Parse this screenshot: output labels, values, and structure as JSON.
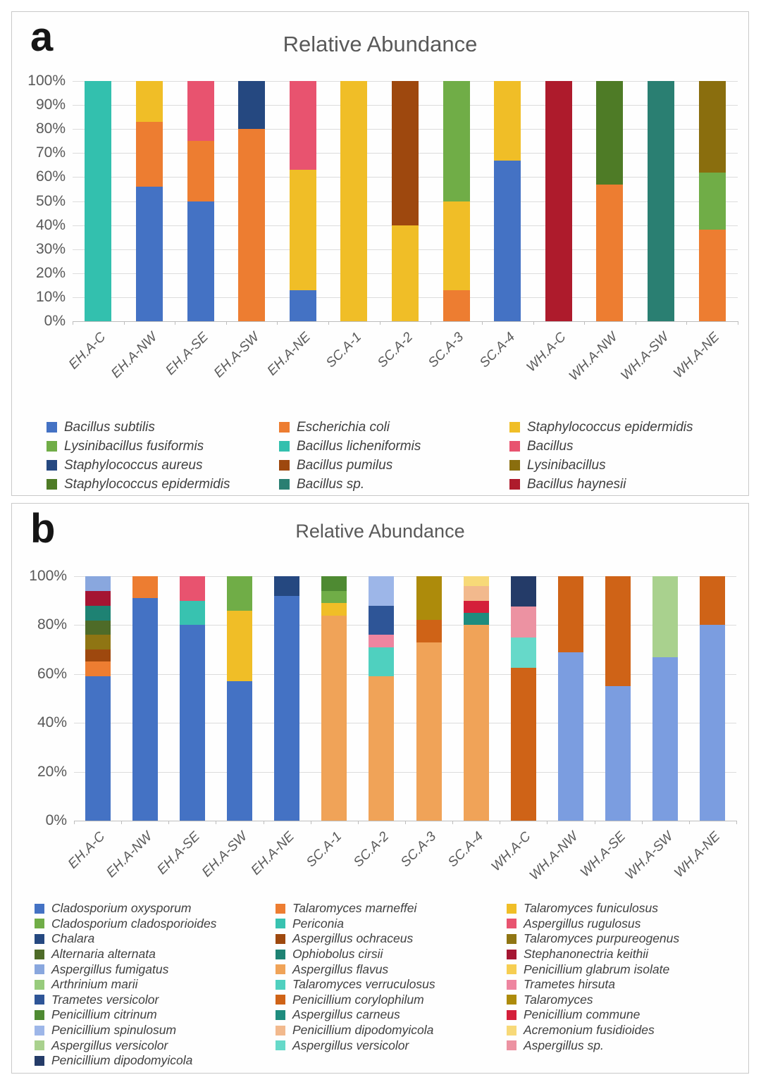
{
  "chart_data": [
    {
      "id": "a",
      "panel_label": "a",
      "type": "bar",
      "stacked": true,
      "title": "Relative Abundance",
      "ylabel": "",
      "xlabel": "",
      "ylim": [
        0,
        100
      ],
      "grid": true,
      "legend_position": "bottom",
      "y_ticks": [
        "100%",
        "90%",
        "80%",
        "70%",
        "60%",
        "50%",
        "40%",
        "30%",
        "20%",
        "10%",
        "0%"
      ],
      "categories": [
        "EH.A-C",
        "EH.A-NW",
        "EH.A-SE",
        "EH.A-SW",
        "EH.A-NE",
        "SC.A-1",
        "SC.A-2",
        "SC.A-3",
        "SC.A-4",
        "WH.A-C",
        "WH.A-NW",
        "WH.A-SW",
        "WH.A-NE"
      ],
      "bars": [
        {
          "category": "EH.A-C",
          "segments": [
            {
              "name": "Bacillus licheniformis",
              "value": 100,
              "color": "#33C0AE"
            }
          ]
        },
        {
          "category": "EH.A-NW",
          "segments": [
            {
              "name": "Bacillus subtilis",
              "value": 56,
              "color": "#4472C4"
            },
            {
              "name": "Escherichia coli",
              "value": 27,
              "color": "#ED7D31"
            },
            {
              "name": "Staphylococcus epidermidis",
              "value": 17,
              "color": "#F0BE27"
            }
          ]
        },
        {
          "category": "EH.A-SE",
          "segments": [
            {
              "name": "Bacillus subtilis",
              "value": 50,
              "color": "#4472C4"
            },
            {
              "name": "Escherichia coli",
              "value": 25,
              "color": "#ED7D31"
            },
            {
              "name": "Bacillus",
              "value": 25,
              "color": "#E8536F"
            }
          ]
        },
        {
          "category": "EH.A-SW",
          "segments": [
            {
              "name": "Escherichia coli",
              "value": 80,
              "color": "#ED7D31"
            },
            {
              "name": "Staphylococcus aureus",
              "value": 20,
              "color": "#254880"
            }
          ]
        },
        {
          "category": "EH.A-NE",
          "segments": [
            {
              "name": "Bacillus subtilis",
              "value": 13,
              "color": "#4472C4"
            },
            {
              "name": "Staphylococcus epidermidis",
              "value": 50,
              "color": "#F0BE27"
            },
            {
              "name": "Bacillus",
              "value": 37,
              "color": "#E8536F"
            }
          ]
        },
        {
          "category": "SC.A-1",
          "segments": [
            {
              "name": "Staphylococcus epidermidis",
              "value": 100,
              "color": "#F0BE27"
            }
          ]
        },
        {
          "category": "SC.A-2",
          "segments": [
            {
              "name": "Staphylococcus epidermidis",
              "value": 40,
              "color": "#F0BE27"
            },
            {
              "name": "Bacillus pumilus",
              "value": 60,
              "color": "#9E480E"
            }
          ]
        },
        {
          "category": "SC.A-3",
          "segments": [
            {
              "name": "Escherichia coli",
              "value": 13,
              "color": "#ED7D31"
            },
            {
              "name": "Staphylococcus epidermidis",
              "value": 37,
              "color": "#F0BE27"
            },
            {
              "name": "Lysinibacillus fusiformis",
              "value": 50,
              "color": "#70AD47"
            }
          ]
        },
        {
          "category": "SC.A-4",
          "segments": [
            {
              "name": "Bacillus subtilis",
              "value": 67,
              "color": "#4472C4"
            },
            {
              "name": "Staphylococcus epidermidis",
              "value": 33,
              "color": "#F0BE27"
            }
          ]
        },
        {
          "category": "WH.A-C",
          "segments": [
            {
              "name": "Bacillus haynesii",
              "value": 100,
              "color": "#AE1B2C"
            }
          ]
        },
        {
          "category": "WH.A-NW",
          "segments": [
            {
              "name": "Escherichia coli",
              "value": 57,
              "color": "#ED7D31"
            },
            {
              "name": "Staphylococcus epidermidis",
              "value": 43,
              "color": "#4E7B26"
            }
          ]
        },
        {
          "category": "WH.A-SW",
          "segments": [
            {
              "name": "Bacillus sp.",
              "value": 100,
              "color": "#2A7F72"
            }
          ]
        },
        {
          "category": "WH.A-NE",
          "segments": [
            {
              "name": "Escherichia coli",
              "value": 38,
              "color": "#ED7D31"
            },
            {
              "name": "Lysinibacillus fusiformis",
              "value": 24,
              "color": "#70AD47"
            },
            {
              "name": "Lysinibacillus",
              "value": 38,
              "color": "#8A6E0E"
            }
          ]
        }
      ],
      "legend": [
        {
          "label": "Bacillus subtilis",
          "color": "#4472C4"
        },
        {
          "label": "Escherichia coli",
          "color": "#ED7D31"
        },
        {
          "label": "Staphylococcus epidermidis",
          "color": "#F0BE27"
        },
        {
          "label": "Lysinibacillus fusiformis",
          "color": "#70AD47"
        },
        {
          "label": "Bacillus licheniformis",
          "color": "#33C0AE"
        },
        {
          "label": "Bacillus",
          "color": "#E8536F"
        },
        {
          "label": "Staphylococcus aureus",
          "color": "#254880"
        },
        {
          "label": "Bacillus pumilus",
          "color": "#9E480E"
        },
        {
          "label": "Lysinibacillus",
          "color": "#8A6E0E"
        },
        {
          "label": "Staphylococcus epidermidis",
          "color": "#4E7B26"
        },
        {
          "label": "Bacillus sp.",
          "color": "#2A7F72"
        },
        {
          "label": "Bacillus haynesii",
          "color": "#AE1B2C"
        }
      ]
    },
    {
      "id": "b",
      "panel_label": "b",
      "type": "bar",
      "stacked": true,
      "title": "Relative Abundance",
      "ylabel": "",
      "xlabel": "",
      "ylim": [
        0,
        100
      ],
      "grid": true,
      "legend_position": "bottom",
      "y_ticks": [
        "100%",
        "80%",
        "60%",
        "40%",
        "20%",
        "0%"
      ],
      "categories": [
        "EH.A-C",
        "EH.A-NW",
        "EH.A-SE",
        "EH.A-SW",
        "EH.A-NE",
        "SC.A-1",
        "SC.A-2",
        "SC.A-3",
        "SC.A-4",
        "WH.A-C",
        "WH.A-NW",
        "WH.A-SE",
        "WH.A-SW",
        "WH.A-NE"
      ],
      "bars": [
        {
          "category": "EH.A-C",
          "segments": [
            {
              "name": "Cladosporium oxysporum",
              "value": 59,
              "color": "#4472C4"
            },
            {
              "name": "Talaromyces marneffei",
              "value": 6,
              "color": "#ED7D31"
            },
            {
              "name": "Aspergillus ochraceus",
              "value": 5,
              "color": "#9E480E"
            },
            {
              "name": "Talaromyces purpureogenus",
              "value": 6,
              "color": "#8F7513"
            },
            {
              "name": "Alternaria alternata",
              "value": 6,
              "color": "#4E6B28"
            },
            {
              "name": "Ophiobolus cirsii",
              "value": 6,
              "color": "#1E8273"
            },
            {
              "name": "Stephanonectria keithii",
              "value": 6,
              "color": "#A51532"
            },
            {
              "name": "Aspergillus fumigatus",
              "value": 6,
              "color": "#89A7DE"
            }
          ]
        },
        {
          "category": "EH.A-NW",
          "segments": [
            {
              "name": "Cladosporium oxysporum",
              "value": 91,
              "color": "#4472C4"
            },
            {
              "name": "Talaromyces marneffei",
              "value": 9,
              "color": "#ED7D31"
            }
          ]
        },
        {
          "category": "EH.A-SE",
          "segments": [
            {
              "name": "Cladosporium oxysporum",
              "value": 80,
              "color": "#4472C4"
            },
            {
              "name": "Periconia",
              "value": 10,
              "color": "#38C2B0"
            },
            {
              "name": "Aspergillus rugulosus",
              "value": 10,
              "color": "#E8536F"
            }
          ]
        },
        {
          "category": "EH.A-SW",
          "segments": [
            {
              "name": "Cladosporium oxysporum",
              "value": 57,
              "color": "#4472C4"
            },
            {
              "name": "Talaromyces funiculosus",
              "value": 29,
              "color": "#F0BE27"
            },
            {
              "name": "Cladosporium cladosporioides",
              "value": 14,
              "color": "#70AD47"
            }
          ]
        },
        {
          "category": "EH.A-NE",
          "segments": [
            {
              "name": "Cladosporium oxysporum",
              "value": 92,
              "color": "#4472C4"
            },
            {
              "name": "Chalara",
              "value": 8,
              "color": "#254880"
            }
          ]
        },
        {
          "category": "SC.A-1",
          "segments": [
            {
              "name": "Aspergillus flavus",
              "value": 84,
              "color": "#F0A358"
            },
            {
              "name": "Talaromyces funiculosus",
              "value": 5,
              "color": "#F0BE27"
            },
            {
              "name": "Cladosporium cladosporioides",
              "value": 5,
              "color": "#70AD47"
            },
            {
              "name": "Penicillium citrinum",
              "value": 6,
              "color": "#4E8A32"
            }
          ]
        },
        {
          "category": "SC.A-2",
          "segments": [
            {
              "name": "Aspergillus flavus",
              "value": 59,
              "color": "#F0A358"
            },
            {
              "name": "Talaromyces verruculosus",
              "value": 12,
              "color": "#4FD0BF"
            },
            {
              "name": "Trametes hirsuta",
              "value": 5,
              "color": "#EE85A0"
            },
            {
              "name": "Trametes versicolor",
              "value": 12,
              "color": "#2E5597"
            },
            {
              "name": "Penicillium spinulosum",
              "value": 12,
              "color": "#9DB6E8"
            }
          ]
        },
        {
          "category": "SC.A-3",
          "segments": [
            {
              "name": "Aspergillus flavus",
              "value": 73,
              "color": "#F0A358"
            },
            {
              "name": "Penicillium corylophilum",
              "value": 9,
              "color": "#CF6317"
            },
            {
              "name": "Talaromyces",
              "value": 18,
              "color": "#AD8B0B"
            }
          ]
        },
        {
          "category": "SC.A-4",
          "segments": [
            {
              "name": "Aspergillus flavus",
              "value": 80,
              "color": "#F0A358"
            },
            {
              "name": "Aspergillus carneus",
              "value": 5,
              "color": "#1E8C7E"
            },
            {
              "name": "Penicillium commune",
              "value": 5,
              "color": "#D41F3A"
            },
            {
              "name": "Penicillium dipodomyicola",
              "value": 6,
              "color": "#F2B98D"
            },
            {
              "name": "Acremonium fusidioides",
              "value": 4,
              "color": "#F7D978"
            }
          ]
        },
        {
          "category": "WH.A-C",
          "segments": [
            {
              "name": "Penicillium corylophilum",
              "value": 62.5,
              "color": "#CF6317"
            },
            {
              "name": "Aspergillus versicolor",
              "value": 12.5,
              "color": "#66D9C9"
            },
            {
              "name": "Aspergillus sp.",
              "value": 12.5,
              "color": "#EC92A2"
            },
            {
              "name": "Penicillium dipodomyicola",
              "value": 12.5,
              "color": "#243B68"
            }
          ]
        },
        {
          "category": "WH.A-NW",
          "segments": [
            {
              "name": "Aspergillus fumigatus",
              "value": 69,
              "color": "#7B9DE0"
            },
            {
              "name": "Penicillium corylophilum",
              "value": 31,
              "color": "#CF6317"
            }
          ]
        },
        {
          "category": "WH.A-SE",
          "segments": [
            {
              "name": "Aspergillus fumigatus",
              "value": 55,
              "color": "#7B9DE0"
            },
            {
              "name": "Penicillium corylophilum",
              "value": 45,
              "color": "#CF6317"
            }
          ]
        },
        {
          "category": "WH.A-SW",
          "segments": [
            {
              "name": "Aspergillus fumigatus",
              "value": 67,
              "color": "#7B9DE0"
            },
            {
              "name": "Aspergillus versicolor",
              "value": 33,
              "color": "#A9D18E"
            }
          ]
        },
        {
          "category": "WH.A-NE",
          "segments": [
            {
              "name": "Aspergillus fumigatus",
              "value": 80,
              "color": "#7B9DE0"
            },
            {
              "name": "Penicillium corylophilum",
              "value": 20,
              "color": "#CF6317"
            }
          ]
        }
      ],
      "legend": [
        {
          "label": "Cladosporium oxysporum",
          "color": "#4472C4"
        },
        {
          "label": "Talaromyces marneffei",
          "color": "#ED7D31"
        },
        {
          "label": "Talaromyces funiculosus",
          "color": "#F0BE27"
        },
        {
          "label": "Cladosporium cladosporioides",
          "color": "#70AD47"
        },
        {
          "label": "Periconia",
          "color": "#38C2B0"
        },
        {
          "label": "Aspergillus rugulosus",
          "color": "#E8536F"
        },
        {
          "label": "Chalara",
          "color": "#254880"
        },
        {
          "label": "Aspergillus ochraceus",
          "color": "#9E480E"
        },
        {
          "label": "Talaromyces purpureogenus",
          "color": "#8F7513"
        },
        {
          "label": "Alternaria alternata",
          "color": "#4E6B28"
        },
        {
          "label": "Ophiobolus cirsii",
          "color": "#1E8273"
        },
        {
          "label": "Stephanonectria keithii",
          "color": "#A51532"
        },
        {
          "label": "Aspergillus fumigatus",
          "color": "#89A7DE"
        },
        {
          "label": "Aspergillus flavus",
          "color": "#F0A358"
        },
        {
          "label": "Penicillium glabrum isolate",
          "color": "#F6CE52"
        },
        {
          "label": "Arthrinium marii",
          "color": "#97CB7C"
        },
        {
          "label": "Talaromyces verruculosus",
          "color": "#4FD0BF"
        },
        {
          "label": "Trametes hirsuta",
          "color": "#EE85A0"
        },
        {
          "label": "Trametes versicolor",
          "color": "#2E5597"
        },
        {
          "label": "Penicillium corylophilum",
          "color": "#CF6317"
        },
        {
          "label": "Talaromyces",
          "color": "#AD8B0B"
        },
        {
          "label": "Penicillium citrinum",
          "color": "#4E8A32"
        },
        {
          "label": "Aspergillus carneus",
          "color": "#1E8C7E"
        },
        {
          "label": "Penicillium commune",
          "color": "#D41F3A"
        },
        {
          "label": "Penicillium spinulosum",
          "color": "#9DB6E8"
        },
        {
          "label": "Penicillium dipodomyicola",
          "color": "#F2B98D"
        },
        {
          "label": "Acremonium fusidioides",
          "color": "#F7D978"
        },
        {
          "label": "Aspergillus versicolor",
          "color": "#A9D18E"
        },
        {
          "label": "Aspergillus versicolor",
          "color": "#66D9C9"
        },
        {
          "label": "Aspergillus sp.",
          "color": "#EC92A2"
        },
        {
          "label": "Penicillium dipodomyicola",
          "color": "#243B68"
        }
      ]
    }
  ]
}
